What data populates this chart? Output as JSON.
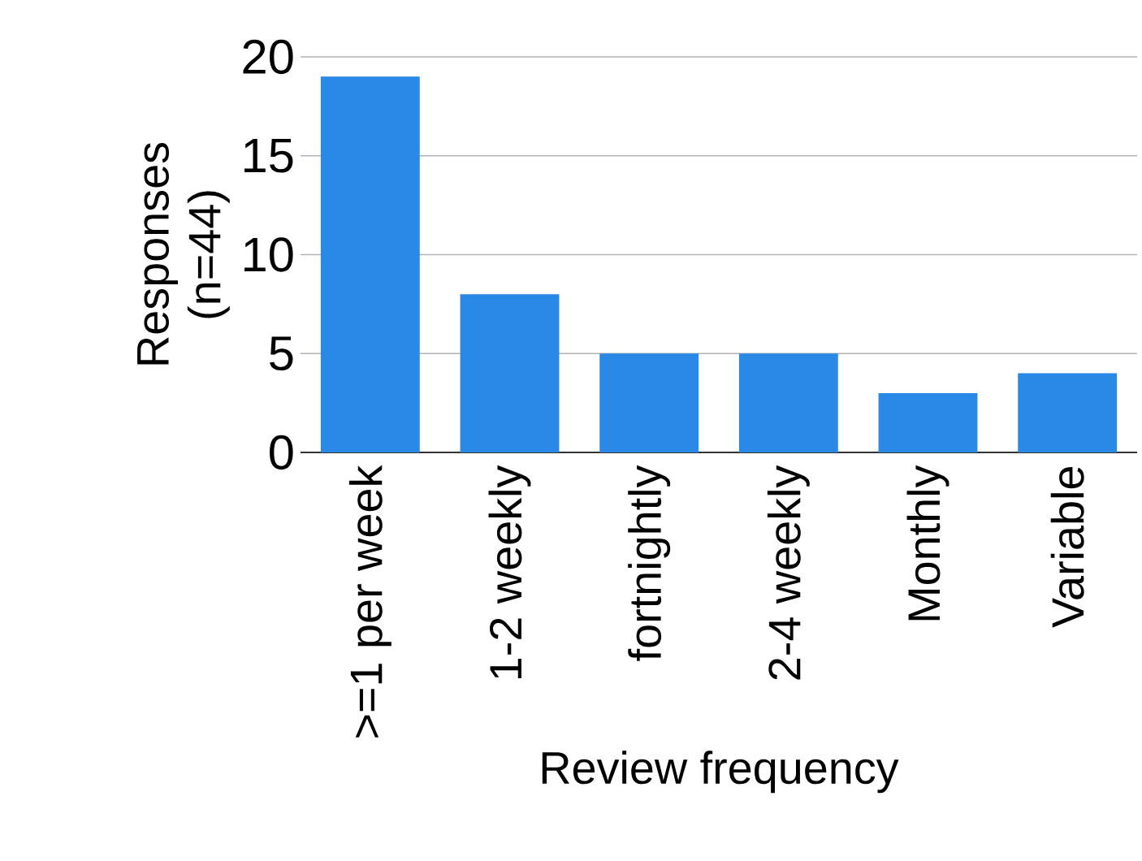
{
  "chart_data": {
    "type": "bar",
    "xlabel": "Review frequency",
    "ylabel": "Responses (n=44)",
    "categories": [
      ">=1 per week",
      "1-2 weekly",
      "fortnightly",
      "2-4 weekly",
      "Monthly",
      "Variable"
    ],
    "values": [
      19,
      8,
      5,
      5,
      3,
      4
    ],
    "color": "#2a88e6",
    "ylim": [
      0,
      20
    ],
    "yticks": [
      0,
      5,
      10,
      15,
      20
    ],
    "grid": "y"
  }
}
